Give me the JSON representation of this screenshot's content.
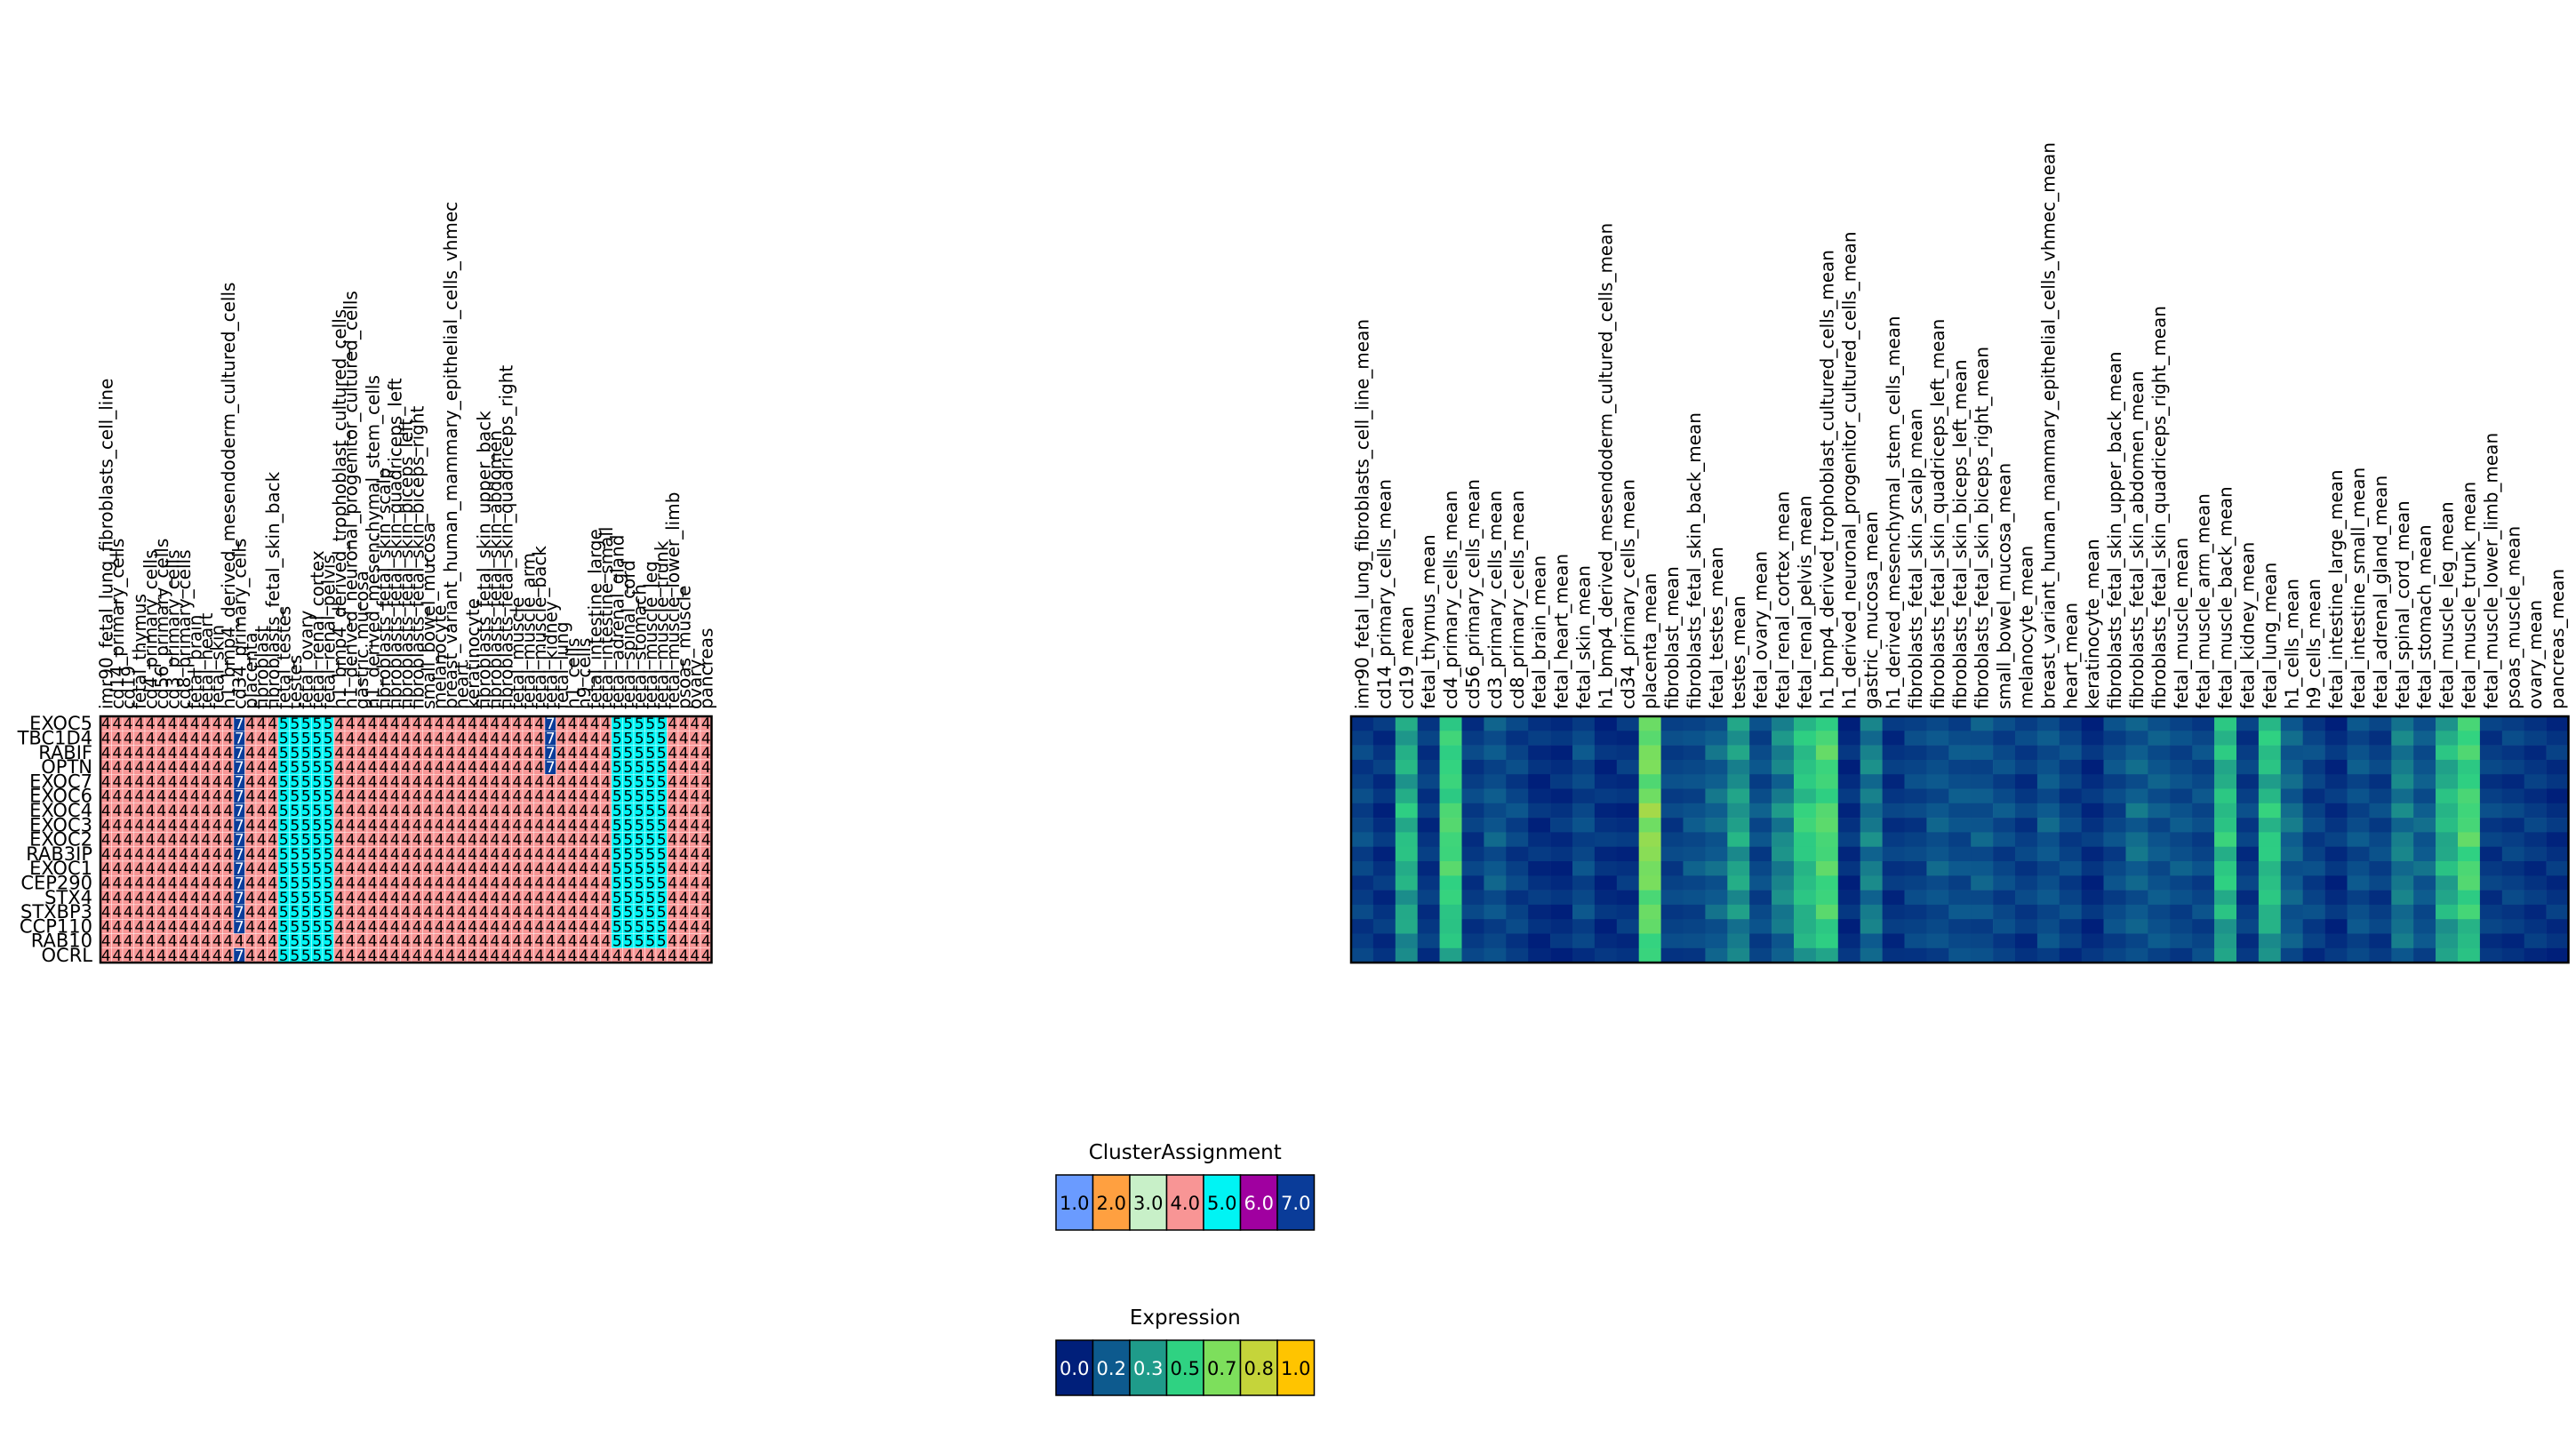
{
  "chart_data": {
    "type": "heatmap",
    "rows": [
      "EXOC5",
      "TBC1D4",
      "RABIF",
      "OPTN",
      "EXOC7",
      "EXOC6",
      "EXOC4",
      "EXOC3",
      "EXOC2",
      "RAB3IP",
      "EXOC1",
      "CEP290",
      "STX4",
      "STXBP3",
      "CCP110",
      "RAB10",
      "OCRL"
    ],
    "cluster_panel": {
      "columns": [
        "imr90_fetal_lung_fibroblasts_cell_line",
        "cd14_primary_cells",
        "cd19",
        "fetal_thymus",
        "cd4_primary_cells",
        "cd56_primary_cells",
        "cd3_primary_cells",
        "cd8_primary_cells",
        "fetal_brain",
        "fetal_heart",
        "fetal_skin",
        "h1_bmp4_derived_mesendoderm_cultured_cells",
        "cd34_primary_cells",
        "placenta",
        "fibroblast",
        "fibroblasts_fetal_skin_back",
        "fetal_testes",
        "testes",
        "fetal_ovary",
        "fetal_renal_cortex",
        "fetal_renal_pelvis",
        "h1_bmp4_derived_trophoblast_cultured_cells",
        "h1_derived_neuronal_progenitor_cultured_cells",
        "gastric_mucosa",
        "h1_derived_mesenchymal_stem_cells",
        "fibroblasts_fetal_skin_scalp",
        "fibroblasts_fetal_skin_quadriceps_left",
        "fibroblasts_fetal_skin_biceps_left",
        "fibroblasts_fetal_skin_biceps_right",
        "small_bowel_mucosa",
        "melanocyte",
        "breast_variant_human_mammary_epithelial_cells_vhmec",
        "heart",
        "keratinocyte",
        "fibroblasts_fetal_skin_upper_back",
        "fibroblasts_fetal_skin_abdomen",
        "fibroblasts_fetal_skin_quadriceps_right",
        "fetal_muscle",
        "fetal_muscle_arm",
        "fetal_muscle_back",
        "fetal_kidney",
        "fetal_lung",
        "h1_cells",
        "h9_cells",
        "fetal_intestine_large",
        "fetal_intestine_small",
        "fetal_adrenal_gland",
        "fetal_spinal_cord",
        "fetal_stomach",
        "fetal_muscle_leg",
        "fetal_muscle_trunk",
        "fetal_muscle_lower_limb",
        "psoas_muscle",
        "ovary",
        "pancreas"
      ],
      "matrix": [
        [
          4,
          4,
          4,
          4,
          4,
          4,
          4,
          4,
          4,
          4,
          4,
          4,
          7,
          4,
          4,
          4,
          5,
          5,
          5,
          5,
          5,
          4,
          4,
          4,
          4,
          4,
          4,
          4,
          4,
          4,
          4,
          4,
          4,
          4,
          4,
          4,
          4,
          4,
          4,
          4,
          7,
          4,
          4,
          4,
          4,
          4,
          5,
          5,
          5,
          5,
          5,
          4,
          4,
          4,
          4
        ],
        [
          4,
          4,
          4,
          4,
          4,
          4,
          4,
          4,
          4,
          4,
          4,
          4,
          7,
          4,
          4,
          4,
          5,
          5,
          5,
          5,
          5,
          4,
          4,
          4,
          4,
          4,
          4,
          4,
          4,
          4,
          4,
          4,
          4,
          4,
          4,
          4,
          4,
          4,
          4,
          4,
          7,
          4,
          4,
          4,
          4,
          4,
          5,
          5,
          5,
          5,
          5,
          4,
          4,
          4,
          4
        ],
        [
          4,
          4,
          4,
          4,
          4,
          4,
          4,
          4,
          4,
          4,
          4,
          4,
          7,
          4,
          4,
          4,
          5,
          5,
          5,
          5,
          5,
          4,
          4,
          4,
          4,
          4,
          4,
          4,
          4,
          4,
          4,
          4,
          4,
          4,
          4,
          4,
          4,
          4,
          4,
          4,
          7,
          4,
          4,
          4,
          4,
          4,
          5,
          5,
          5,
          5,
          5,
          4,
          4,
          4,
          4
        ],
        [
          4,
          4,
          4,
          4,
          4,
          4,
          4,
          4,
          4,
          4,
          4,
          4,
          7,
          4,
          4,
          4,
          5,
          5,
          5,
          5,
          5,
          4,
          4,
          4,
          4,
          4,
          4,
          4,
          4,
          4,
          4,
          4,
          4,
          4,
          4,
          4,
          4,
          4,
          4,
          4,
          7,
          4,
          4,
          4,
          4,
          4,
          5,
          5,
          5,
          5,
          5,
          4,
          4,
          4,
          4
        ],
        [
          4,
          4,
          4,
          4,
          4,
          4,
          4,
          4,
          4,
          4,
          4,
          4,
          7,
          4,
          4,
          4,
          5,
          5,
          5,
          5,
          5,
          4,
          4,
          4,
          4,
          4,
          4,
          4,
          4,
          4,
          4,
          4,
          4,
          4,
          4,
          4,
          4,
          4,
          4,
          4,
          4,
          4,
          4,
          4,
          4,
          4,
          5,
          5,
          5,
          5,
          5,
          4,
          4,
          4,
          4
        ],
        [
          4,
          4,
          4,
          4,
          4,
          4,
          4,
          4,
          4,
          4,
          4,
          4,
          7,
          4,
          4,
          4,
          5,
          5,
          5,
          5,
          5,
          4,
          4,
          4,
          4,
          4,
          4,
          4,
          4,
          4,
          4,
          4,
          4,
          4,
          4,
          4,
          4,
          4,
          4,
          4,
          4,
          4,
          4,
          4,
          4,
          4,
          5,
          5,
          5,
          5,
          5,
          4,
          4,
          4,
          4
        ],
        [
          4,
          4,
          4,
          4,
          4,
          4,
          4,
          4,
          4,
          4,
          4,
          4,
          7,
          4,
          4,
          4,
          5,
          5,
          5,
          5,
          5,
          4,
          4,
          4,
          4,
          4,
          4,
          4,
          4,
          4,
          4,
          4,
          4,
          4,
          4,
          4,
          4,
          4,
          4,
          4,
          4,
          4,
          4,
          4,
          4,
          4,
          5,
          5,
          5,
          5,
          5,
          4,
          4,
          4,
          4
        ],
        [
          4,
          4,
          4,
          4,
          4,
          4,
          4,
          4,
          4,
          4,
          4,
          4,
          7,
          4,
          4,
          4,
          5,
          5,
          5,
          5,
          5,
          4,
          4,
          4,
          4,
          4,
          4,
          4,
          4,
          4,
          4,
          4,
          4,
          4,
          4,
          4,
          4,
          4,
          4,
          4,
          4,
          4,
          4,
          4,
          4,
          4,
          5,
          5,
          5,
          5,
          5,
          4,
          4,
          4,
          4
        ],
        [
          4,
          4,
          4,
          4,
          4,
          4,
          4,
          4,
          4,
          4,
          4,
          4,
          7,
          4,
          4,
          4,
          5,
          5,
          5,
          5,
          5,
          4,
          4,
          4,
          4,
          4,
          4,
          4,
          4,
          4,
          4,
          4,
          4,
          4,
          4,
          4,
          4,
          4,
          4,
          4,
          4,
          4,
          4,
          4,
          4,
          4,
          5,
          5,
          5,
          5,
          5,
          4,
          4,
          4,
          4
        ],
        [
          4,
          4,
          4,
          4,
          4,
          4,
          4,
          4,
          4,
          4,
          4,
          4,
          7,
          4,
          4,
          4,
          5,
          5,
          5,
          5,
          5,
          4,
          4,
          4,
          4,
          4,
          4,
          4,
          4,
          4,
          4,
          4,
          4,
          4,
          4,
          4,
          4,
          4,
          4,
          4,
          4,
          4,
          4,
          4,
          4,
          4,
          5,
          5,
          5,
          5,
          5,
          4,
          4,
          4,
          4
        ],
        [
          4,
          4,
          4,
          4,
          4,
          4,
          4,
          4,
          4,
          4,
          4,
          4,
          7,
          4,
          4,
          4,
          5,
          5,
          5,
          5,
          5,
          4,
          4,
          4,
          4,
          4,
          4,
          4,
          4,
          4,
          4,
          4,
          4,
          4,
          4,
          4,
          4,
          4,
          4,
          4,
          4,
          4,
          4,
          4,
          4,
          4,
          5,
          5,
          5,
          5,
          5,
          4,
          4,
          4,
          4
        ],
        [
          4,
          4,
          4,
          4,
          4,
          4,
          4,
          4,
          4,
          4,
          4,
          4,
          7,
          4,
          4,
          4,
          5,
          5,
          5,
          5,
          5,
          4,
          4,
          4,
          4,
          4,
          4,
          4,
          4,
          4,
          4,
          4,
          4,
          4,
          4,
          4,
          4,
          4,
          4,
          4,
          4,
          4,
          4,
          4,
          4,
          4,
          5,
          5,
          5,
          5,
          5,
          4,
          4,
          4,
          4
        ],
        [
          4,
          4,
          4,
          4,
          4,
          4,
          4,
          4,
          4,
          4,
          4,
          4,
          7,
          4,
          4,
          4,
          5,
          5,
          5,
          5,
          5,
          4,
          4,
          4,
          4,
          4,
          4,
          4,
          4,
          4,
          4,
          4,
          4,
          4,
          4,
          4,
          4,
          4,
          4,
          4,
          4,
          4,
          4,
          4,
          4,
          4,
          5,
          5,
          5,
          5,
          5,
          4,
          4,
          4,
          4
        ],
        [
          4,
          4,
          4,
          4,
          4,
          4,
          4,
          4,
          4,
          4,
          4,
          4,
          7,
          4,
          4,
          4,
          5,
          5,
          5,
          5,
          5,
          4,
          4,
          4,
          4,
          4,
          4,
          4,
          4,
          4,
          4,
          4,
          4,
          4,
          4,
          4,
          4,
          4,
          4,
          4,
          4,
          4,
          4,
          4,
          4,
          4,
          5,
          5,
          5,
          5,
          5,
          4,
          4,
          4,
          4
        ],
        [
          4,
          4,
          4,
          4,
          4,
          4,
          4,
          4,
          4,
          4,
          4,
          4,
          7,
          4,
          4,
          4,
          5,
          5,
          5,
          5,
          5,
          4,
          4,
          4,
          4,
          4,
          4,
          4,
          4,
          4,
          4,
          4,
          4,
          4,
          4,
          4,
          4,
          4,
          4,
          4,
          4,
          4,
          4,
          4,
          4,
          4,
          5,
          5,
          5,
          5,
          5,
          4,
          4,
          4,
          4
        ],
        [
          4,
          4,
          4,
          4,
          4,
          4,
          4,
          4,
          4,
          4,
          4,
          4,
          4,
          4,
          4,
          4,
          5,
          5,
          5,
          5,
          5,
          4,
          4,
          4,
          4,
          4,
          4,
          4,
          4,
          4,
          4,
          4,
          4,
          4,
          4,
          4,
          4,
          4,
          4,
          4,
          4,
          4,
          4,
          4,
          4,
          4,
          5,
          5,
          5,
          5,
          5,
          4,
          4,
          4,
          4
        ],
        [
          4,
          4,
          4,
          4,
          4,
          4,
          4,
          4,
          4,
          4,
          4,
          4,
          7,
          4,
          4,
          4,
          5,
          5,
          5,
          5,
          5,
          4,
          4,
          4,
          4,
          4,
          4,
          4,
          4,
          4,
          4,
          4,
          4,
          4,
          4,
          4,
          4,
          4,
          4,
          4,
          4,
          4,
          4,
          4,
          4,
          4,
          4,
          4,
          4,
          4,
          4,
          4,
          4,
          4,
          4
        ]
      ]
    },
    "expression_panel": {
      "columns": [
        "imr90_fetal_lung_fibroblasts_cell_line_mean",
        "cd14_primary_cells_mean",
        "cd19_mean",
        "fetal_thymus_mean",
        "cd4_primary_cells_mean",
        "cd56_primary_cells_mean",
        "cd3_primary_cells_mean",
        "cd8_primary_cells_mean",
        "fetal_brain_mean",
        "fetal_heart_mean",
        "fetal_skin_mean",
        "h1_bmp4_derived_mesendoderm_cultured_cells_mean",
        "cd34_primary_cells_mean",
        "placenta_mean",
        "fibroblast_mean",
        "fibroblasts_fetal_skin_back_mean",
        "fetal_testes_mean",
        "testes_mean",
        "fetal_ovary_mean",
        "fetal_renal_cortex_mean",
        "fetal_renal_pelvis_mean",
        "h1_bmp4_derived_trophoblast_cultured_cells_mean",
        "h1_derived_neuronal_progenitor_cultured_cells_mean",
        "gastric_mucosa_mean",
        "h1_derived_mesenchymal_stem_cells_mean",
        "fibroblasts_fetal_skin_scalp_mean",
        "fibroblasts_fetal_skin_quadriceps_left_mean",
        "fibroblasts_fetal_skin_biceps_left_mean",
        "fibroblasts_fetal_skin_biceps_right_mean",
        "small_bowel_mucosa_mean",
        "melanocyte_mean",
        "breast_variant_human_mammary_epithelial_cells_vhmec_mean",
        "heart_mean",
        "keratinocyte_mean",
        "fibroblasts_fetal_skin_upper_back_mean",
        "fibroblasts_fetal_skin_abdomen_mean",
        "fibroblasts_fetal_skin_quadriceps_right_mean",
        "fetal_muscle_mean",
        "fetal_muscle_arm_mean",
        "fetal_muscle_back_mean",
        "fetal_kidney_mean",
        "fetal_lung_mean",
        "h1_cells_mean",
        "h9_cells_mean",
        "fetal_intestine_large_mean",
        "fetal_intestine_small_mean",
        "fetal_adrenal_gland_mean",
        "fetal_spinal_cord_mean",
        "fetal_stomach_mean",
        "fetal_muscle_leg_mean",
        "fetal_muscle_trunk_mean",
        "fetal_muscle_lower_limb_mean",
        "psoas_muscle_mean",
        "ovary_mean",
        "pancreas_mean"
      ],
      "column_profile": [
        0.12,
        0.06,
        0.42,
        0.08,
        0.55,
        0.1,
        0.18,
        0.12,
        0.05,
        0.05,
        0.14,
        0.05,
        0.06,
        0.7,
        0.12,
        0.16,
        0.22,
        0.36,
        0.15,
        0.3,
        0.48,
        0.58,
        0.05,
        0.28,
        0.08,
        0.12,
        0.18,
        0.16,
        0.18,
        0.14,
        0.1,
        0.18,
        0.12,
        0.05,
        0.14,
        0.22,
        0.18,
        0.16,
        0.14,
        0.46,
        0.1,
        0.46,
        0.22,
        0.12,
        0.06,
        0.16,
        0.12,
        0.28,
        0.2,
        0.42,
        0.56,
        0.1,
        0.1,
        0.08,
        0.06
      ],
      "row_scale": [
        0.9,
        0.95,
        1.0,
        0.95,
        0.9,
        0.95,
        1.05,
        1.0,
        1.05,
        0.95,
        1.0,
        0.95,
        0.9,
        0.95,
        0.85,
        0.8,
        0.75
      ]
    },
    "legends": [
      {
        "title": "ClusterAssignment",
        "values": [
          "1.0",
          "2.0",
          "3.0",
          "4.0",
          "5.0",
          "6.0",
          "7.0"
        ],
        "colors": [
          "#6a9bff",
          "#ffa040",
          "#c8f0c8",
          "#f89595",
          "#00f4f4",
          "#a000a0",
          "#0a3c99"
        ]
      },
      {
        "title": "Expression",
        "values": [
          "0.0",
          "0.2",
          "0.3",
          "0.5",
          "0.7",
          "0.8",
          "1.0"
        ],
        "colors": [
          "#001f7a",
          "#0d5a8e",
          "#1f9b8a",
          "#2fd282",
          "#7ddf5c",
          "#c5d43a",
          "#ffc400"
        ]
      }
    ]
  }
}
